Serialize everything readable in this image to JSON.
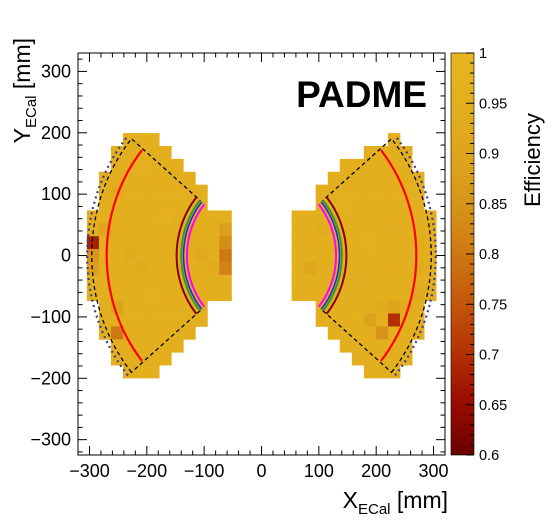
{
  "chart_data": {
    "type": "heatmap",
    "title": "",
    "badge": "PADME",
    "xlabel": {
      "main": "X",
      "sub": "ECal",
      "unit": " [mm]"
    },
    "ylabel": {
      "main": "Y",
      "sub": "ECal",
      "unit": " [mm]"
    },
    "xlim": [
      -320,
      320
    ],
    "ylim": [
      -325,
      330
    ],
    "xticks": [
      -300,
      -200,
      -100,
      0,
      100,
      200,
      300
    ],
    "yticks": [
      -300,
      -200,
      -100,
      0,
      100,
      200,
      300
    ],
    "xtick_labels": [
      "−300",
      "−200",
      "−100",
      "0",
      "100",
      "200",
      "300"
    ],
    "ytick_labels": [
      "−300",
      "−200",
      "−100",
      "0",
      "100",
      "200",
      "300"
    ],
    "colorbar": {
      "title": "Efficiency",
      "range": [
        0.6,
        1.0
      ],
      "ticks": [
        0.6,
        0.65,
        0.7,
        0.75,
        0.8,
        0.85,
        0.9,
        0.95,
        1.0
      ],
      "tick_labels": [
        "0.6",
        "0.65",
        "0.7",
        "0.75",
        "0.8",
        "0.85",
        "0.9",
        "0.95",
        "1"
      ],
      "colors": [
        "#6b0000",
        "#9c0e00",
        "#b83a06",
        "#c8650e",
        "#d38a16",
        "#dca21c",
        "#e2ae1f",
        "#e8b520"
      ]
    },
    "cell_size_mm": 21,
    "default_efficiency": 0.95,
    "left_region": {
      "rows": [
        {
          "y": 189,
          "x_min": -231,
          "x_max": -189
        },
        {
          "y": 168,
          "x_min": -252,
          "x_max": -168
        },
        {
          "y": 147,
          "x_min": -252,
          "x_max": -147
        },
        {
          "y": 126,
          "x_min": -273,
          "x_max": -126
        },
        {
          "y": 105,
          "x_min": -273,
          "x_max": -105
        },
        {
          "y": 84,
          "x_min": -273,
          "x_max": -105
        },
        {
          "y": 63,
          "x_min": -294,
          "x_max": -63
        },
        {
          "y": 42,
          "x_min": -294,
          "x_max": -63
        },
        {
          "y": 21,
          "x_min": -294,
          "x_max": -63
        },
        {
          "y": 0,
          "x_min": -294,
          "x_max": -63
        },
        {
          "y": -21,
          "x_min": -294,
          "x_max": -63
        },
        {
          "y": -42,
          "x_min": -294,
          "x_max": -63
        },
        {
          "y": -63,
          "x_min": -294,
          "x_max": -63
        },
        {
          "y": -84,
          "x_min": -273,
          "x_max": -105
        },
        {
          "y": -105,
          "x_min": -273,
          "x_max": -105
        },
        {
          "y": -126,
          "x_min": -273,
          "x_max": -126
        },
        {
          "y": -147,
          "x_min": -252,
          "x_max": -147
        },
        {
          "y": -168,
          "x_min": -252,
          "x_max": -168
        },
        {
          "y": -189,
          "x_min": -231,
          "x_max": -189
        }
      ],
      "special_cells": [
        {
          "x": -294,
          "y": 21,
          "value": 0.68
        },
        {
          "x": -294,
          "y": 0,
          "value": 0.86
        },
        {
          "x": -294,
          "y": -21,
          "value": 0.88
        },
        {
          "x": -63,
          "y": 21,
          "value": 0.84
        },
        {
          "x": -63,
          "y": 0,
          "value": 0.8
        },
        {
          "x": -63,
          "y": -21,
          "value": 0.82
        },
        {
          "x": -63,
          "y": 42,
          "value": 0.88
        },
        {
          "x": -252,
          "y": -126,
          "value": 0.8
        },
        {
          "x": -252,
          "y": -84,
          "value": 0.89
        },
        {
          "x": -273,
          "y": 42,
          "value": 0.9
        },
        {
          "x": -252,
          "y": 105,
          "value": 0.92
        },
        {
          "x": -210,
          "y": -21,
          "value": 0.93
        },
        {
          "x": -105,
          "y": 0,
          "value": 0.92
        },
        {
          "x": -84,
          "y": -21,
          "value": 0.93
        },
        {
          "x": -84,
          "y": 21,
          "value": 0.94
        },
        {
          "x": -210,
          "y": 147,
          "value": 0.96
        },
        {
          "x": -168,
          "y": 63,
          "value": 0.97
        },
        {
          "x": -189,
          "y": -63,
          "value": 0.96
        },
        {
          "x": -231,
          "y": 0,
          "value": 0.93
        },
        {
          "x": -126,
          "y": 42,
          "value": 0.94
        }
      ]
    },
    "right_region": {
      "rows": [
        {
          "y": 189,
          "x_min": 231,
          "x_max": 231
        },
        {
          "y": 168,
          "x_min": 189,
          "x_max": 252
        },
        {
          "y": 147,
          "x_min": 147,
          "x_max": 252
        },
        {
          "y": 126,
          "x_min": 126,
          "x_max": 273
        },
        {
          "y": 105,
          "x_min": 105,
          "x_max": 273
        },
        {
          "y": 84,
          "x_min": 105,
          "x_max": 273
        },
        {
          "y": 63,
          "x_min": 63,
          "x_max": 294
        },
        {
          "y": 42,
          "x_min": 63,
          "x_max": 294
        },
        {
          "y": 21,
          "x_min": 63,
          "x_max": 294
        },
        {
          "y": 0,
          "x_min": 63,
          "x_max": 294
        },
        {
          "y": -21,
          "x_min": 63,
          "x_max": 294
        },
        {
          "y": -42,
          "x_min": 63,
          "x_max": 294
        },
        {
          "y": -63,
          "x_min": 63,
          "x_max": 294
        },
        {
          "y": -84,
          "x_min": 105,
          "x_max": 273
        },
        {
          "y": -105,
          "x_min": 105,
          "x_max": 273
        },
        {
          "y": -126,
          "x_min": 126,
          "x_max": 273
        },
        {
          "y": -147,
          "x_min": 147,
          "x_max": 252
        },
        {
          "y": -168,
          "x_min": 168,
          "x_max": 252
        },
        {
          "y": -189,
          "x_min": 189,
          "x_max": 231
        }
      ],
      "special_cells": [
        {
          "x": 231,
          "y": -105,
          "value": 0.7
        },
        {
          "x": 210,
          "y": -126,
          "value": 0.85
        },
        {
          "x": 189,
          "y": -105,
          "value": 0.89
        },
        {
          "x": 231,
          "y": -84,
          "value": 0.9
        },
        {
          "x": 252,
          "y": -84,
          "value": 0.92
        },
        {
          "x": 210,
          "y": -84,
          "value": 0.93
        },
        {
          "x": 84,
          "y": -21,
          "value": 0.91
        },
        {
          "x": 273,
          "y": 21,
          "value": 0.93
        },
        {
          "x": 273,
          "y": -21,
          "value": 0.93
        },
        {
          "x": 252,
          "y": 126,
          "value": 0.95
        },
        {
          "x": 105,
          "y": 42,
          "value": 0.93
        },
        {
          "x": 168,
          "y": -42,
          "value": 0.94
        },
        {
          "x": 189,
          "y": 21,
          "value": 0.96
        },
        {
          "x": 147,
          "y": 84,
          "value": 0.96
        },
        {
          "x": 231,
          "y": 42,
          "value": 0.94
        },
        {
          "x": 126,
          "y": -63,
          "value": 0.94
        },
        {
          "x": 273,
          "y": -63,
          "value": 0.92
        }
      ]
    },
    "overlays": {
      "outer_dotted_color": "#3d3d8a",
      "dashed_color": "#000000",
      "red_arc_color": "#ff0000",
      "darkred_arc_color": "#8b0000",
      "green_arc_color": "#2f9a2f",
      "blue_arc_color": "#1f2bd9",
      "magenta_arc_color": "#ff00ff",
      "outer_radius_mm": 304,
      "outer_half_angle_deg": 40,
      "dashed_inner_radius_mm": 140,
      "dashed_outer_radius_mm": 296,
      "dashed_half_angle_deg": 40,
      "red_radius_mm": 270,
      "red_half_angle_deg": 39.5,
      "darkred_radius_mm": 148,
      "green_radius_mm": 140,
      "blue_radius_mm": 136,
      "magenta_radius_mm": 130,
      "inner_half_angle_deg": 40
    }
  }
}
